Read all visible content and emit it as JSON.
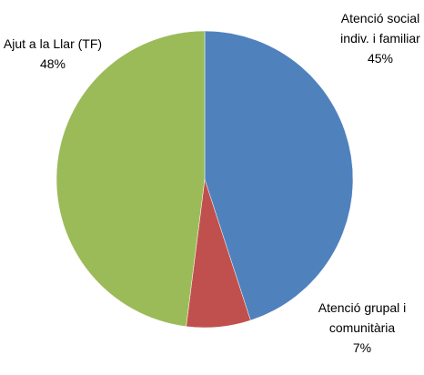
{
  "chart_data": {
    "type": "pie",
    "categories": [
      "Atenció social indiv. i familiar",
      "Atenció grupal i comunitària",
      "Ajut a la Llar (TF)"
    ],
    "values": [
      45,
      7,
      48
    ],
    "value_labels": [
      "45%",
      "7%",
      "48%"
    ],
    "colors": [
      "#4f81bd",
      "#c0504d",
      "#9bbb59"
    ]
  }
}
